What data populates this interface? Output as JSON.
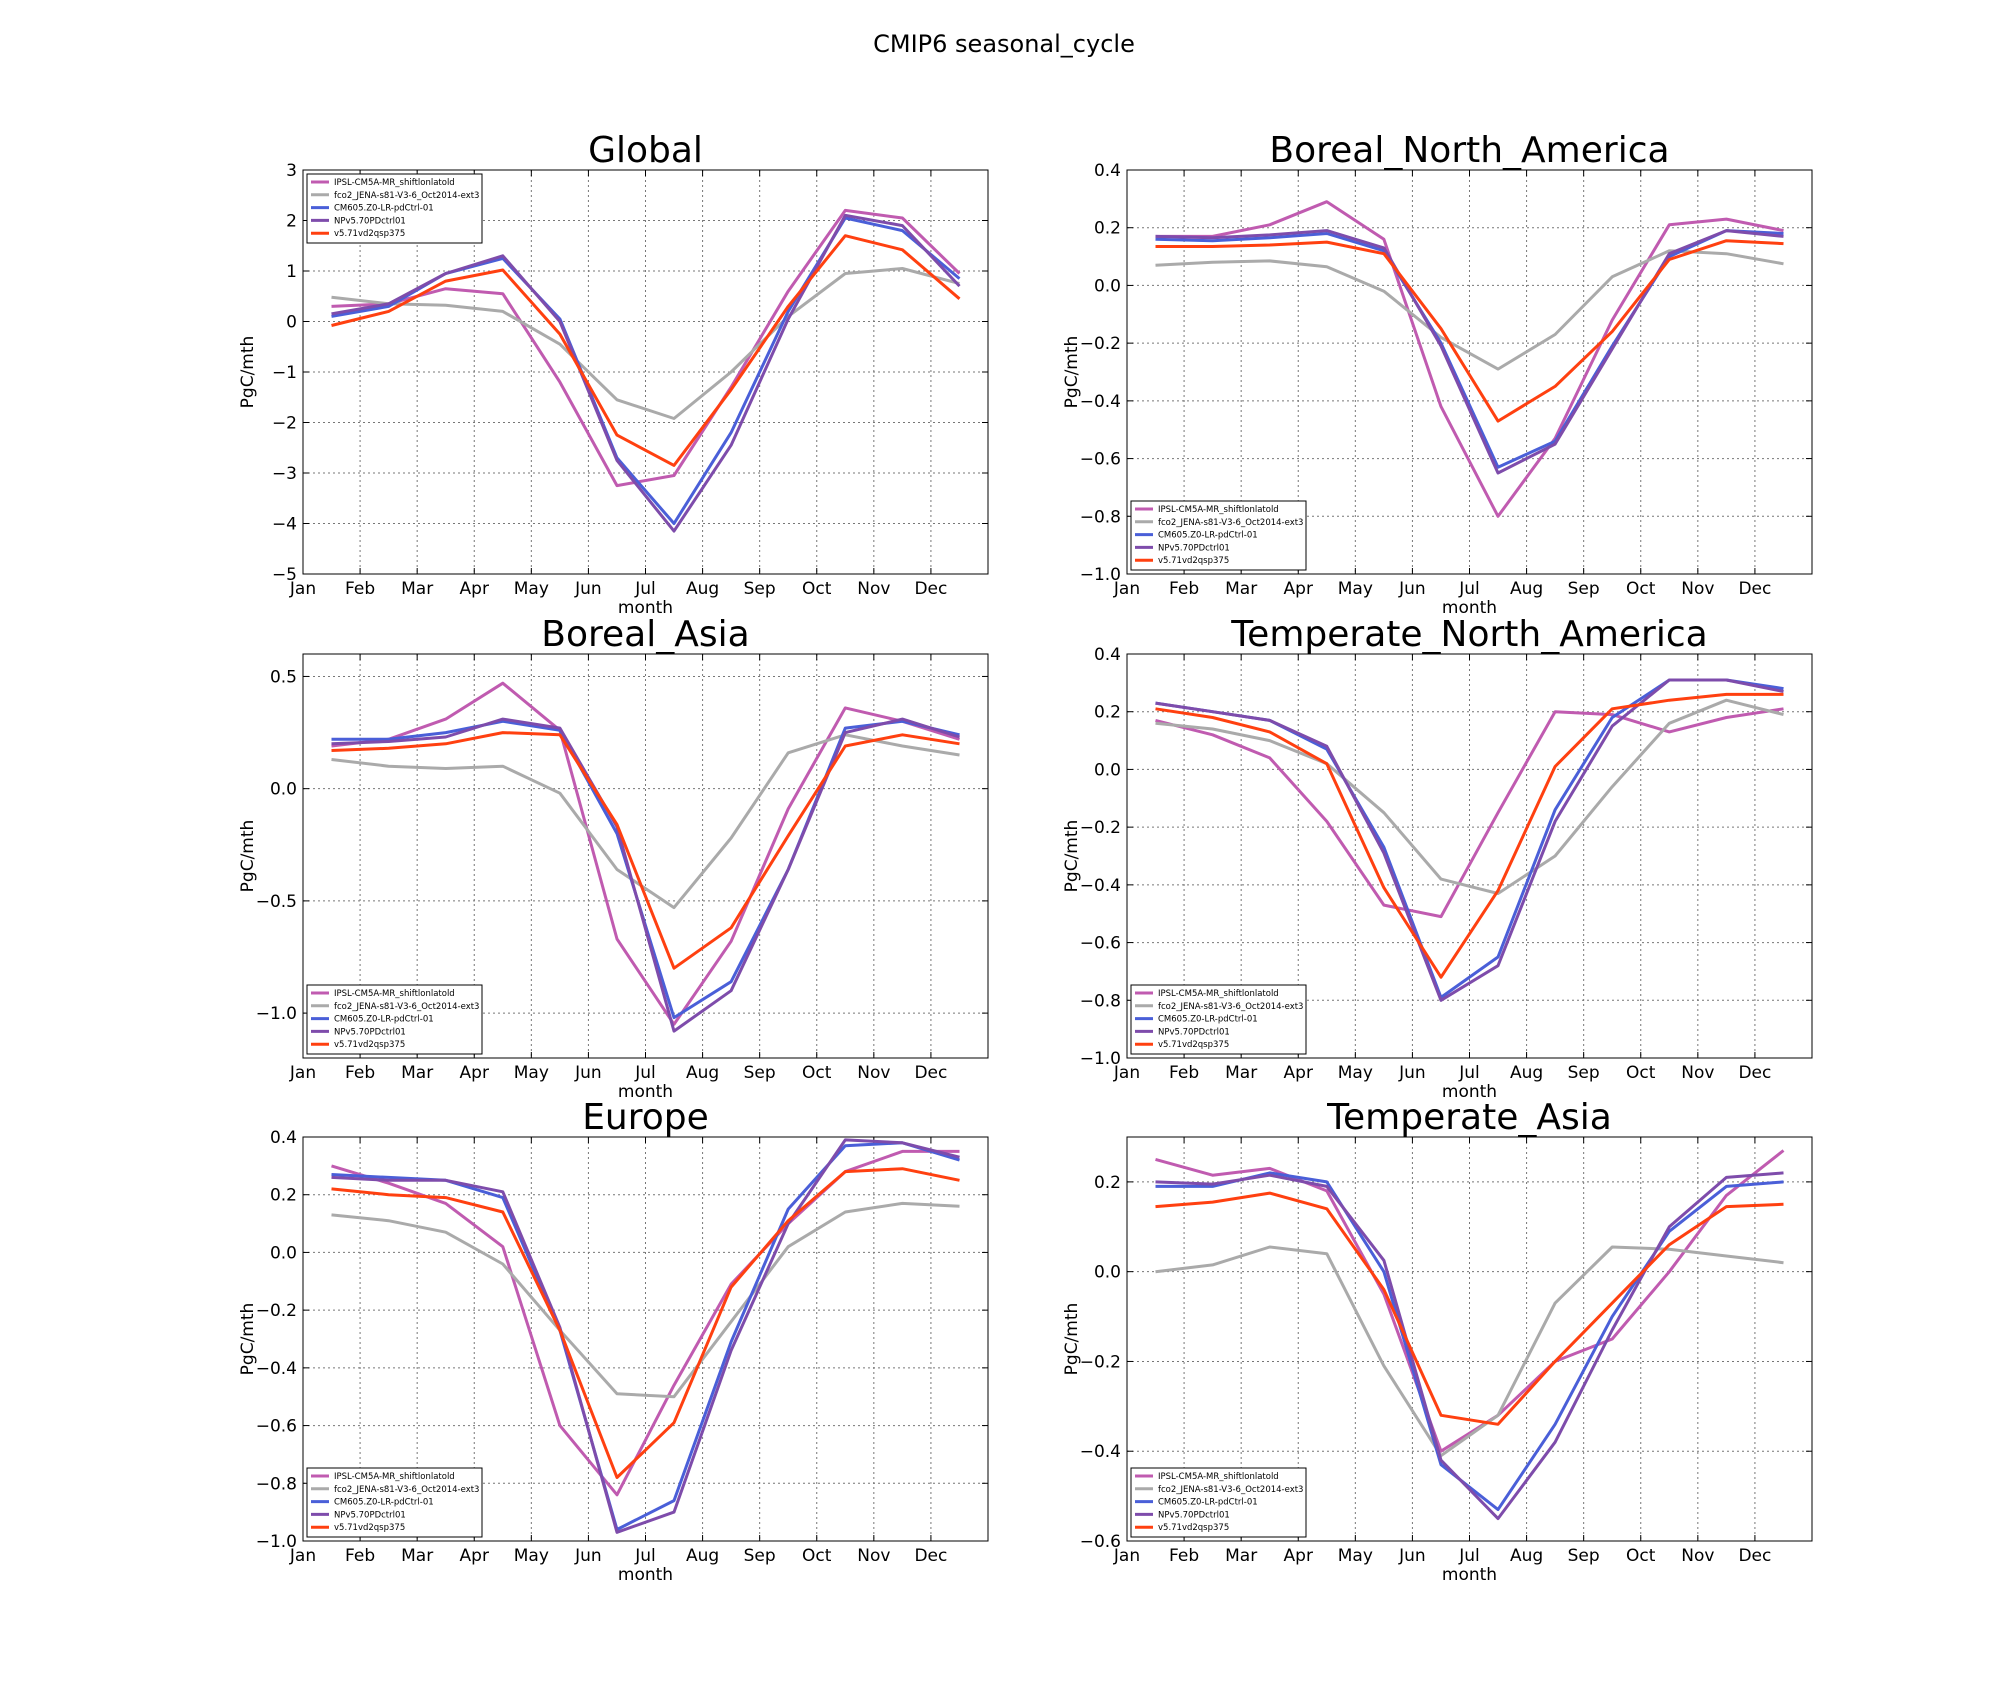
{
  "figure_title": "CMIP6 seasonal_cycle",
  "colors": {
    "IPSL-CM5A-MR_shiftlonlatold": "#c05bb0",
    "fco2_JENA-s81-V3-6_Oct2014-ext3": "#aaaaaa",
    "CM605.Z0-LR-pdCtrl-01": "#4a5fd8",
    "NPv5.70PDctrl01": "#7e4cab",
    "v5.71vd2qsp375": "#ff4010"
  },
  "chart_data": [
    {
      "type": "line",
      "title": "Global",
      "xlabel": "month",
      "ylabel": "PgC/mth",
      "x_tick_labels": [
        "Jan",
        "Feb",
        "Mar",
        "Apr",
        "May",
        "Jun",
        "Jul",
        "Aug",
        "Sep",
        "Oct",
        "Nov",
        "Dec"
      ],
      "xlim": [
        0,
        12
      ],
      "ylim": [
        -5,
        3
      ],
      "y_ticks": [
        3,
        2,
        1,
        0,
        -1,
        -2,
        -3,
        -4,
        -5
      ],
      "y_tick_labels": [
        "3",
        "2",
        "1",
        "0",
        "−1",
        "−2",
        "−3",
        "−4",
        "−5"
      ],
      "grid": true,
      "legend_position": "upper-left",
      "x": [
        0.5,
        1.5,
        2.5,
        3.5,
        4.5,
        5.5,
        6.5,
        7.5,
        8.5,
        9.5,
        10.5,
        11.5
      ],
      "series": [
        {
          "name": "IPSL-CM5A-MR_shiftlonlatold",
          "values": [
            0.3,
            0.35,
            0.65,
            0.55,
            -1.2,
            -3.25,
            -3.05,
            -1.3,
            0.6,
            2.2,
            2.05,
            0.95
          ]
        },
        {
          "name": "fco2_JENA-s81-V3-6_Oct2014-ext3",
          "values": [
            0.48,
            0.35,
            0.32,
            0.2,
            -0.45,
            -1.55,
            -1.92,
            -1.0,
            0.1,
            0.95,
            1.05,
            0.75
          ]
        },
        {
          "name": "CM605.Z0-LR-pdCtrl-01",
          "values": [
            0.1,
            0.3,
            0.95,
            1.25,
            0.05,
            -2.7,
            -4.0,
            -2.2,
            0.2,
            2.05,
            1.8,
            0.85
          ]
        },
        {
          "name": "NPv5.70PDctrl01",
          "values": [
            0.15,
            0.35,
            0.95,
            1.3,
            0.0,
            -2.75,
            -4.15,
            -2.45,
            0.05,
            2.1,
            1.9,
            0.7
          ]
        },
        {
          "name": "v5.71vd2qsp375",
          "values": [
            -0.08,
            0.2,
            0.8,
            1.02,
            -0.25,
            -2.25,
            -2.85,
            -1.35,
            0.3,
            1.7,
            1.42,
            0.45
          ]
        }
      ]
    },
    {
      "type": "line",
      "title": "Boreal_North_America",
      "xlabel": "month",
      "ylabel": "PgC/mth",
      "x_tick_labels": [
        "Jan",
        "Feb",
        "Mar",
        "Apr",
        "May",
        "Jun",
        "Jul",
        "Aug",
        "Sep",
        "Oct",
        "Nov",
        "Dec"
      ],
      "xlim": [
        0,
        12
      ],
      "ylim": [
        -1.0,
        0.4
      ],
      "y_ticks": [
        0.4,
        0.2,
        0.0,
        -0.2,
        -0.4,
        -0.6,
        -0.8,
        -1.0
      ],
      "y_tick_labels": [
        "0.4",
        "0.2",
        "0.0",
        "−0.2",
        "−0.4",
        "−0.6",
        "−0.8",
        "−1.0"
      ],
      "grid": true,
      "legend_position": "lower-left",
      "x": [
        0.5,
        1.5,
        2.5,
        3.5,
        4.5,
        5.5,
        6.5,
        7.5,
        8.5,
        9.5,
        10.5,
        11.5
      ],
      "series": [
        {
          "name": "IPSL-CM5A-MR_shiftlonlatold",
          "values": [
            0.17,
            0.17,
            0.21,
            0.29,
            0.16,
            -0.42,
            -0.8,
            -0.53,
            -0.12,
            0.21,
            0.23,
            0.19
          ]
        },
        {
          "name": "fco2_JENA-s81-V3-6_Oct2014-ext3",
          "values": [
            0.07,
            0.08,
            0.085,
            0.065,
            -0.02,
            -0.18,
            -0.29,
            -0.17,
            0.03,
            0.12,
            0.11,
            0.075
          ]
        },
        {
          "name": "CM605.Z0-LR-pdCtrl-01",
          "values": [
            0.16,
            0.155,
            0.165,
            0.18,
            0.12,
            -0.2,
            -0.63,
            -0.54,
            -0.21,
            0.1,
            0.19,
            0.18
          ]
        },
        {
          "name": "NPv5.70PDctrl01",
          "values": [
            0.17,
            0.165,
            0.175,
            0.19,
            0.13,
            -0.21,
            -0.65,
            -0.55,
            -0.22,
            0.11,
            0.19,
            0.17
          ]
        },
        {
          "name": "v5.71vd2qsp375",
          "values": [
            0.135,
            0.135,
            0.14,
            0.15,
            0.11,
            -0.15,
            -0.47,
            -0.35,
            -0.16,
            0.09,
            0.155,
            0.145
          ]
        }
      ]
    },
    {
      "type": "line",
      "title": "Boreal_Asia",
      "xlabel": "month",
      "ylabel": "PgC/mth",
      "x_tick_labels": [
        "Jan",
        "Feb",
        "Mar",
        "Apr",
        "May",
        "Jun",
        "Jul",
        "Aug",
        "Sep",
        "Oct",
        "Nov",
        "Dec"
      ],
      "xlim": [
        0,
        12
      ],
      "ylim": [
        -1.2,
        0.6
      ],
      "y_ticks": [
        0.5,
        0.0,
        -0.5,
        -1.0
      ],
      "y_tick_labels": [
        "0.5",
        "0.0",
        "−0.5",
        "−1.0"
      ],
      "grid": true,
      "legend_position": "lower-left",
      "x": [
        0.5,
        1.5,
        2.5,
        3.5,
        4.5,
        5.5,
        6.5,
        7.5,
        8.5,
        9.5,
        10.5,
        11.5
      ],
      "series": [
        {
          "name": "IPSL-CM5A-MR_shiftlonlatold",
          "values": [
            0.19,
            0.22,
            0.31,
            0.47,
            0.26,
            -0.67,
            -1.05,
            -0.68,
            -0.09,
            0.36,
            0.3,
            0.22
          ]
        },
        {
          "name": "fco2_JENA-s81-V3-6_Oct2014-ext3",
          "values": [
            0.13,
            0.1,
            0.09,
            0.1,
            -0.02,
            -0.36,
            -0.53,
            -0.22,
            0.16,
            0.24,
            0.19,
            0.15
          ]
        },
        {
          "name": "CM605.Z0-LR-pdCtrl-01",
          "values": [
            0.22,
            0.22,
            0.25,
            0.3,
            0.26,
            -0.2,
            -1.02,
            -0.86,
            -0.36,
            0.27,
            0.3,
            0.24
          ]
        },
        {
          "name": "NPv5.70PDctrl01",
          "values": [
            0.2,
            0.21,
            0.23,
            0.31,
            0.27,
            -0.17,
            -1.08,
            -0.9,
            -0.36,
            0.25,
            0.31,
            0.23
          ]
        },
        {
          "name": "v5.71vd2qsp375",
          "values": [
            0.17,
            0.18,
            0.2,
            0.25,
            0.24,
            -0.16,
            -0.8,
            -0.62,
            -0.21,
            0.19,
            0.24,
            0.2
          ]
        }
      ]
    },
    {
      "type": "line",
      "title": "Temperate_North_America",
      "xlabel": "month",
      "ylabel": "PgC/mth",
      "x_tick_labels": [
        "Jan",
        "Feb",
        "Mar",
        "Apr",
        "May",
        "Jun",
        "Jul",
        "Aug",
        "Sep",
        "Oct",
        "Nov",
        "Dec"
      ],
      "xlim": [
        0,
        12
      ],
      "ylim": [
        -1.0,
        0.4
      ],
      "y_ticks": [
        0.4,
        0.2,
        0.0,
        -0.2,
        -0.4,
        -0.6,
        -0.8,
        -1.0
      ],
      "y_tick_labels": [
        "0.4",
        "0.2",
        "0.0",
        "−0.2",
        "−0.4",
        "−0.6",
        "−0.8",
        "−1.0"
      ],
      "grid": true,
      "legend_position": "lower-left",
      "x": [
        0.5,
        1.5,
        2.5,
        3.5,
        4.5,
        5.5,
        6.5,
        7.5,
        8.5,
        9.5,
        10.5,
        11.5
      ],
      "series": [
        {
          "name": "IPSL-CM5A-MR_shiftlonlatold",
          "values": [
            0.17,
            0.12,
            0.04,
            -0.18,
            -0.47,
            -0.51,
            -0.15,
            0.2,
            0.19,
            0.13,
            0.18,
            0.21
          ]
        },
        {
          "name": "fco2_JENA-s81-V3-6_Oct2014-ext3",
          "values": [
            0.16,
            0.14,
            0.1,
            0.02,
            -0.15,
            -0.38,
            -0.43,
            -0.3,
            -0.06,
            0.16,
            0.24,
            0.19
          ]
        },
        {
          "name": "CM605.Z0-LR-pdCtrl-01",
          "values": [
            0.23,
            0.2,
            0.17,
            0.07,
            -0.27,
            -0.79,
            -0.65,
            -0.14,
            0.18,
            0.31,
            0.31,
            0.28
          ]
        },
        {
          "name": "NPv5.70PDctrl01",
          "values": [
            0.23,
            0.2,
            0.17,
            0.08,
            -0.29,
            -0.8,
            -0.68,
            -0.18,
            0.15,
            0.31,
            0.31,
            0.27
          ]
        },
        {
          "name": "v5.71vd2qsp375",
          "values": [
            0.21,
            0.18,
            0.13,
            0.02,
            -0.41,
            -0.72,
            -0.42,
            0.01,
            0.21,
            0.24,
            0.26,
            0.26
          ]
        }
      ]
    },
    {
      "type": "line",
      "title": "Europe",
      "xlabel": "month",
      "ylabel": "PgC/mth",
      "x_tick_labels": [
        "Jan",
        "Feb",
        "Mar",
        "Apr",
        "May",
        "Jun",
        "Jul",
        "Aug",
        "Sep",
        "Oct",
        "Nov",
        "Dec"
      ],
      "xlim": [
        0,
        12
      ],
      "ylim": [
        -1.0,
        0.4
      ],
      "y_ticks": [
        0.4,
        0.2,
        0.0,
        -0.2,
        -0.4,
        -0.6,
        -0.8,
        -1.0
      ],
      "y_tick_labels": [
        "0.4",
        "0.2",
        "0.0",
        "−0.2",
        "−0.4",
        "−0.6",
        "−0.8",
        "−1.0"
      ],
      "grid": true,
      "legend_position": "lower-left",
      "x": [
        0.5,
        1.5,
        2.5,
        3.5,
        4.5,
        5.5,
        6.5,
        7.5,
        8.5,
        9.5,
        10.5,
        11.5
      ],
      "series": [
        {
          "name": "IPSL-CM5A-MR_shiftlonlatold",
          "values": [
            0.3,
            0.24,
            0.17,
            0.02,
            -0.6,
            -0.84,
            -0.46,
            -0.11,
            0.1,
            0.28,
            0.35,
            0.35
          ]
        },
        {
          "name": "fco2_JENA-s81-V3-6_Oct2014-ext3",
          "values": [
            0.13,
            0.11,
            0.07,
            -0.04,
            -0.27,
            -0.49,
            -0.5,
            -0.24,
            0.02,
            0.14,
            0.17,
            0.16
          ]
        },
        {
          "name": "CM605.Z0-LR-pdCtrl-01",
          "values": [
            0.27,
            0.26,
            0.25,
            0.19,
            -0.27,
            -0.96,
            -0.86,
            -0.31,
            0.15,
            0.37,
            0.38,
            0.32
          ]
        },
        {
          "name": "NPv5.70PDctrl01",
          "values": [
            0.26,
            0.25,
            0.25,
            0.21,
            -0.26,
            -0.97,
            -0.9,
            -0.34,
            0.1,
            0.39,
            0.38,
            0.33
          ]
        },
        {
          "name": "v5.71vd2qsp375",
          "values": [
            0.22,
            0.2,
            0.19,
            0.14,
            -0.27,
            -0.78,
            -0.59,
            -0.12,
            0.11,
            0.28,
            0.29,
            0.25
          ]
        }
      ]
    },
    {
      "type": "line",
      "title": "Temperate_Asia",
      "xlabel": "month",
      "ylabel": "PgC/mth",
      "x_tick_labels": [
        "Jan",
        "Feb",
        "Mar",
        "Apr",
        "May",
        "Jun",
        "Jul",
        "Aug",
        "Sep",
        "Oct",
        "Nov",
        "Dec"
      ],
      "xlim": [
        0,
        12
      ],
      "ylim": [
        -0.6,
        0.3
      ],
      "y_ticks": [
        0.2,
        0.0,
        -0.2,
        -0.4,
        -0.6
      ],
      "y_tick_labels": [
        "0.2",
        "0.0",
        "−0.2",
        "−0.4",
        "−0.6"
      ],
      "grid": true,
      "legend_position": "lower-left",
      "x": [
        0.5,
        1.5,
        2.5,
        3.5,
        4.5,
        5.5,
        6.5,
        7.5,
        8.5,
        9.5,
        10.5,
        11.5
      ],
      "series": [
        {
          "name": "IPSL-CM5A-MR_shiftlonlatold",
          "values": [
            0.25,
            0.215,
            0.23,
            0.18,
            -0.05,
            -0.4,
            -0.32,
            -0.2,
            -0.15,
            0.0,
            0.17,
            0.27
          ]
        },
        {
          "name": "fco2_JENA-s81-V3-6_Oct2014-ext3",
          "values": [
            0.0,
            0.015,
            0.055,
            0.04,
            -0.21,
            -0.41,
            -0.32,
            -0.07,
            0.055,
            0.05,
            0.035,
            0.02
          ]
        },
        {
          "name": "CM605.Z0-LR-pdCtrl-01",
          "values": [
            0.19,
            0.19,
            0.22,
            0.2,
            0.0,
            -0.43,
            -0.53,
            -0.34,
            -0.1,
            0.09,
            0.19,
            0.2
          ]
        },
        {
          "name": "NPv5.70PDctrl01",
          "values": [
            0.2,
            0.195,
            0.215,
            0.19,
            0.025,
            -0.42,
            -0.55,
            -0.38,
            -0.13,
            0.1,
            0.21,
            0.22
          ]
        },
        {
          "name": "v5.71vd2qsp375",
          "values": [
            0.145,
            0.155,
            0.175,
            0.14,
            -0.04,
            -0.32,
            -0.34,
            -0.2,
            -0.07,
            0.06,
            0.145,
            0.15
          ]
        }
      ]
    }
  ]
}
